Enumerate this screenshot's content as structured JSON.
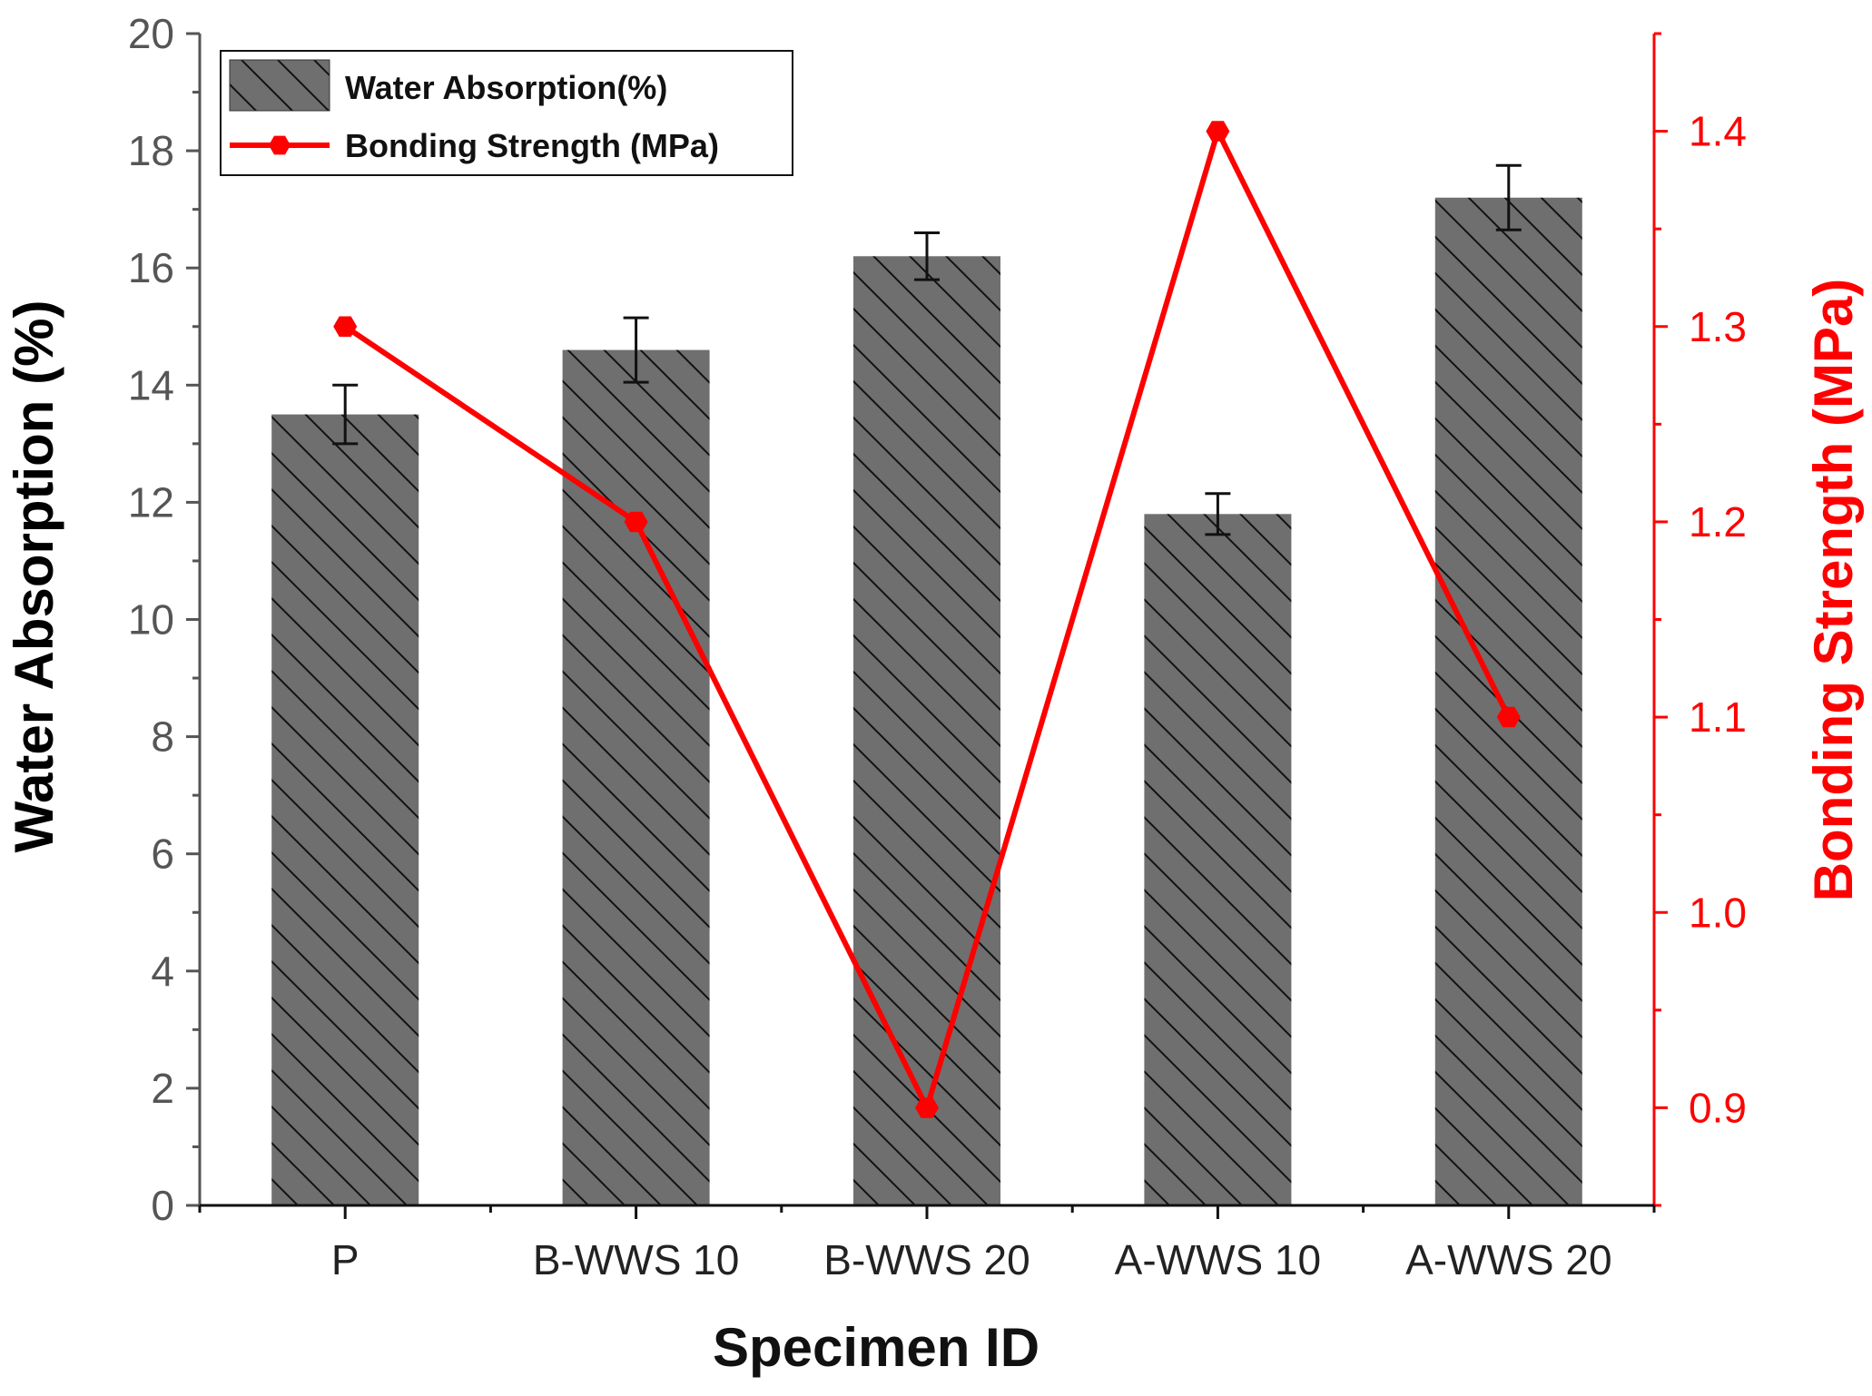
{
  "chart_data": {
    "type": "bar",
    "title": "",
    "xlabel": "Specimen ID",
    "ylabel": "Water Absorption (%)",
    "y2label": "Bonding Strength (MPa)",
    "categories": [
      "P",
      "B-WWS 10",
      "B-WWS 20",
      "A-WWS 10",
      "A-WWS 20"
    ],
    "ylim": [
      0,
      20
    ],
    "y2lim": [
      0.85,
      1.45
    ],
    "yticks": [
      "0",
      "2",
      "4",
      "6",
      "8",
      "10",
      "12",
      "14",
      "16",
      "18",
      "20"
    ],
    "y2ticks": [
      "0.9",
      "1.0",
      "1.1",
      "1.2",
      "1.3",
      "1.4"
    ],
    "series": [
      {
        "name": "Water Absorption(%)",
        "type": "bar",
        "axis": "left",
        "values": [
          13.5,
          14.6,
          16.2,
          11.8,
          17.2
        ],
        "error": [
          0.5,
          0.55,
          0.4,
          0.35,
          0.55
        ],
        "color": "#6f6f6f",
        "hatch": "diagonal"
      },
      {
        "name": "Bonding Strength (MPa)",
        "type": "line",
        "axis": "right",
        "values": [
          1.3,
          1.2,
          0.9,
          1.4,
          1.1
        ],
        "color": "#ff0000",
        "marker": "hexagon"
      }
    ],
    "legend_position": "top-left",
    "grid": false
  },
  "colors": {
    "left_axis": "#555555",
    "right_axis": "#ff0000",
    "bar_fill": "#6f6f6f",
    "line": "#ff0000"
  }
}
